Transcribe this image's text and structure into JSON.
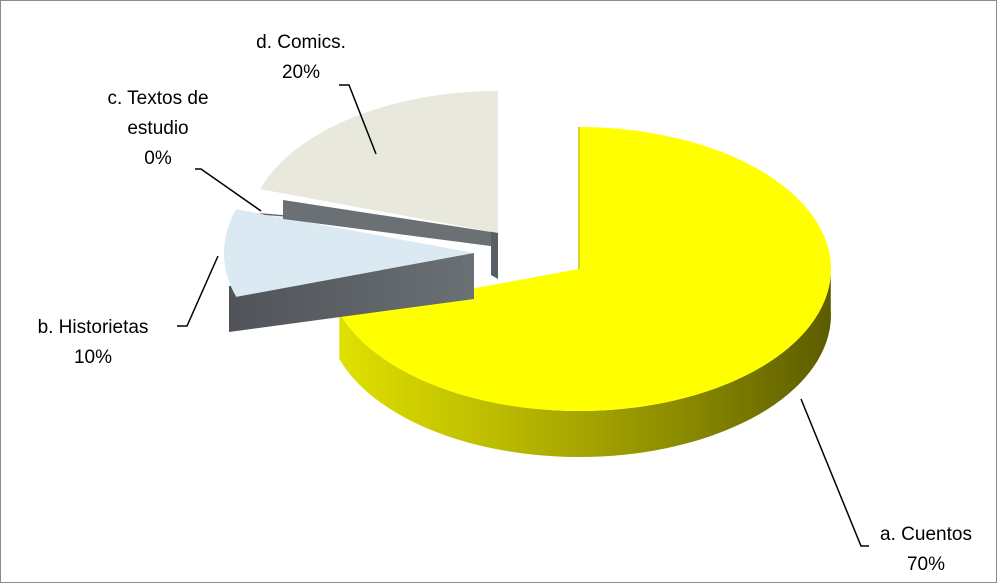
{
  "chart_data": {
    "type": "pie",
    "title": "",
    "style": "3d-exploded",
    "legend": "none",
    "slices": [
      {
        "category": "a. Cuentos",
        "value": 70,
        "label": "70%",
        "color": "#ffff00"
      },
      {
        "category": "b. Historietas",
        "value": 10,
        "label": "10%",
        "color": "#dbe9f2"
      },
      {
        "category": "c. Textos de estudio",
        "value": 0,
        "label": "0%",
        "color": "#5f6569"
      },
      {
        "category": "d. Comics.",
        "value": 20,
        "label": "20%",
        "color": "#e8e9dc"
      }
    ],
    "data_labels": [
      {
        "lines": [
          "a. Cuentos",
          "70%"
        ]
      },
      {
        "lines": [
          "b. Historietas",
          "10%"
        ]
      },
      {
        "lines": [
          "c. Textos de",
          "estudio",
          "0%"
        ]
      },
      {
        "lines": [
          "d. Comics.",
          "20%"
        ]
      }
    ]
  }
}
